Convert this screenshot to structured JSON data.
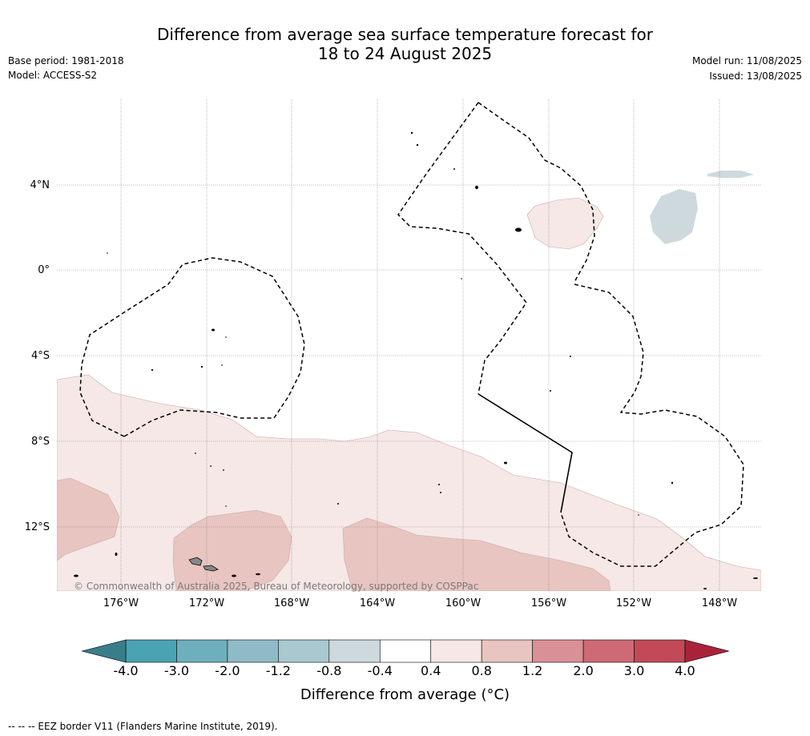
{
  "title": {
    "line1": "Difference from average sea surface temperature forecast for",
    "line2": "18 to 24 August 2025"
  },
  "meta_left": {
    "base_period": "Base period: 1981-2018",
    "model": "Model: ACCESS-S2"
  },
  "meta_right": {
    "model_run": "Model run: 11/08/2025",
    "issued": "Issued: 13/08/2025"
  },
  "map": {
    "latitude_labels": [
      "4°N",
      "0°",
      "4°S",
      "8°S",
      "12°S"
    ],
    "longitude_labels": [
      "176°W",
      "172°W",
      "168°W",
      "164°W",
      "160°W",
      "156°W",
      "152°W",
      "148°W"
    ],
    "copyright": "© Commonwealth of Australia 2025, Bureau of Meteorology, supported by COSPPac",
    "colors": {
      "land": "#888888",
      "weak_warm": "#f5e8e6",
      "moderate_warm": "#e8c5c0",
      "weak_cool": "#cdd9dd"
    }
  },
  "colorbar": {
    "ticks": [
      "-4.0",
      "-3.0",
      "-2.0",
      "-1.2",
      "-0.8",
      "-0.4",
      "0.4",
      "0.8",
      "1.2",
      "2.0",
      "3.0",
      "4.0"
    ],
    "colors": [
      "#4aa3b3",
      "#6eafbd",
      "#8ebbc6",
      "#a9c8cf",
      "#cdd9dd",
      "#ffffff",
      "#f5e8e6",
      "#e8c5c0",
      "#d99097",
      "#cd6a75",
      "#c24a57"
    ],
    "under_color": "#3a7d8a",
    "over_color": "#a8233a",
    "label": "Difference from average (°C)"
  },
  "footnote": "--  --  -- EEZ border V11 (Flanders Marine Institute, 2019)."
}
